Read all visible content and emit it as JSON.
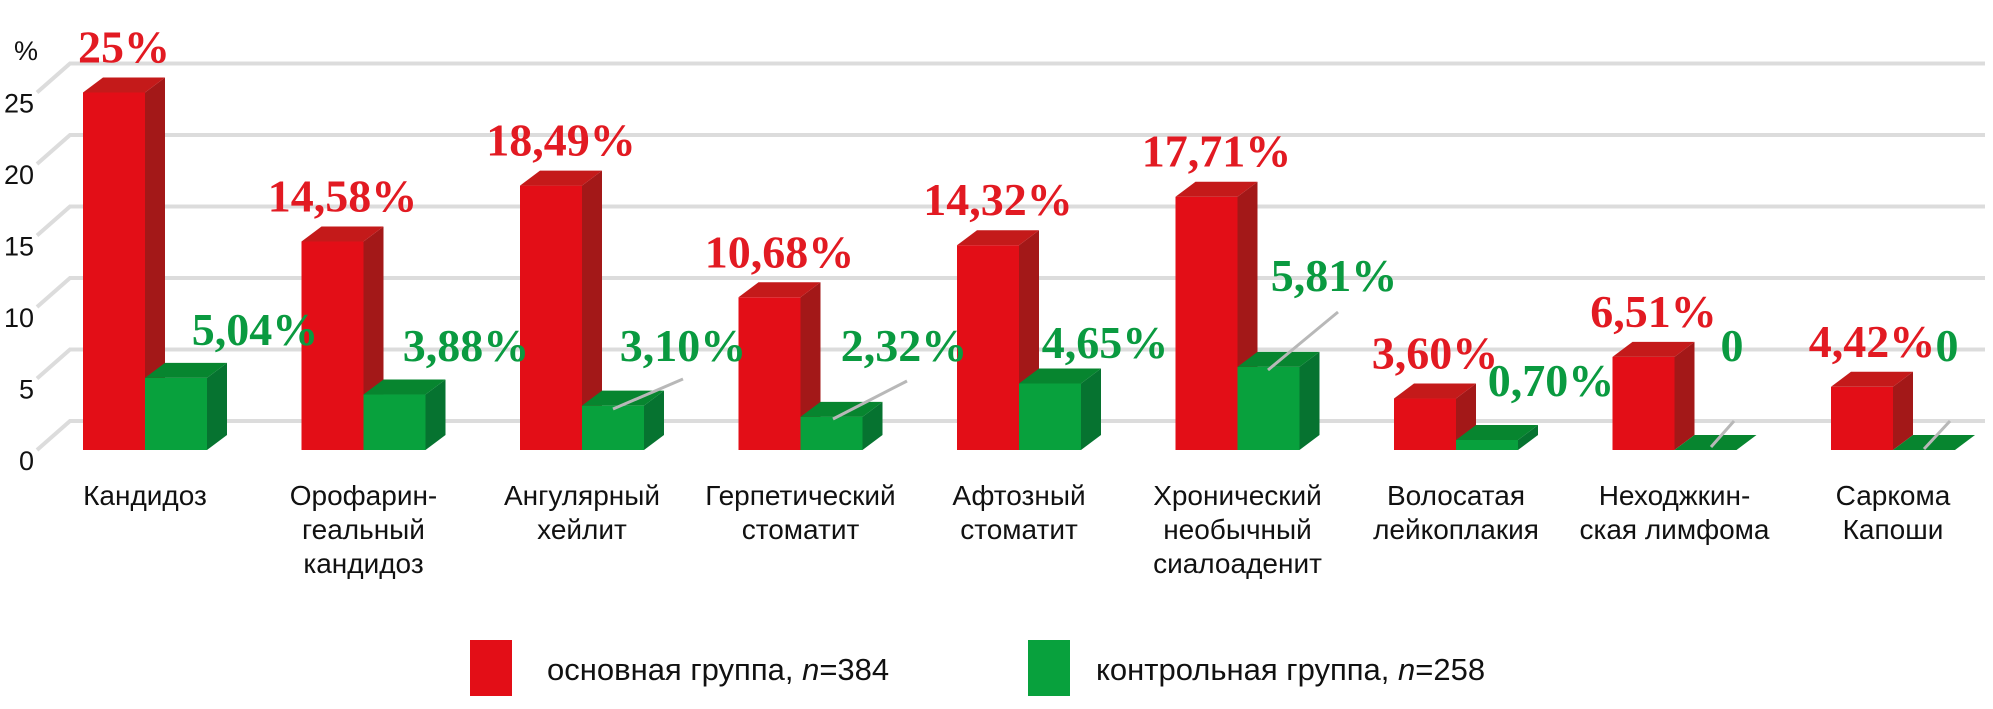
{
  "chart_data": {
    "type": "bar",
    "title": "",
    "ylabel": "%",
    "xlabel": "",
    "ylim": [
      0,
      25
    ],
    "yticks": [
      "0",
      "5",
      "10",
      "15",
      "20",
      "25"
    ],
    "grid": true,
    "legend_placement": "bottom-center",
    "categories": [
      [
        "Кандидоз"
      ],
      [
        "Орофарин-",
        "геальный",
        "кандидоз"
      ],
      [
        "Ангулярный",
        "хейлит"
      ],
      [
        "Герпетический",
        "стоматит"
      ],
      [
        "Афтозный",
        "стоматит"
      ],
      [
        "Хронический",
        "необычный",
        "сиалоаденит"
      ],
      [
        "Волосатая",
        "лейкоплакия"
      ],
      [
        "Неходжкин-",
        "ская лимфома"
      ],
      [
        "Саркома",
        "Капоши"
      ]
    ],
    "series": [
      {
        "name": "основная группа, n=384",
        "legend_prefix": "основная группа, ",
        "legend_n": "n",
        "legend_suffix": "=384",
        "color": "#e30e17",
        "values": [
          25,
          14.58,
          18.49,
          10.68,
          14.32,
          17.71,
          3.6,
          6.51,
          4.42
        ],
        "labels": [
          "25%",
          "14,58%",
          "18,49%",
          "10,68%",
          "14,32%",
          "17,71%",
          "3,60%",
          "6,51%",
          "4,42%"
        ]
      },
      {
        "name": "контрольная группа, n=258",
        "legend_prefix": "контрольная группа, ",
        "legend_n": "n",
        "legend_suffix": "=258",
        "color": "#08a13d",
        "values": [
          5.04,
          3.88,
          3.1,
          2.32,
          4.65,
          5.81,
          0.7,
          0,
          0
        ],
        "labels": [
          "5,04%",
          "3,88%",
          "3,10%",
          "2,32%",
          "4,65%",
          "5,81%",
          "0,70%",
          "0",
          "0"
        ]
      }
    ]
  }
}
